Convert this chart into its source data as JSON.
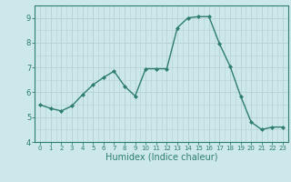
{
  "x": [
    0,
    1,
    2,
    3,
    4,
    5,
    6,
    7,
    8,
    9,
    10,
    11,
    12,
    13,
    14,
    15,
    16,
    17,
    18,
    19,
    20,
    21,
    22,
    23
  ],
  "y": [
    5.5,
    5.35,
    5.25,
    5.45,
    5.9,
    6.3,
    6.6,
    6.85,
    6.25,
    5.85,
    6.95,
    6.95,
    6.95,
    8.6,
    9.0,
    9.05,
    9.05,
    7.95,
    7.05,
    5.85,
    4.8,
    4.5,
    4.6,
    4.6
  ],
  "line_color": "#2e7d6e",
  "marker": "D",
  "marker_size": 2,
  "line_width": 1.0,
  "xlabel": "Humidex (Indice chaleur)",
  "xlabel_fontsize": 7,
  "xlim": [
    -0.5,
    23.5
  ],
  "ylim": [
    4,
    9.5
  ],
  "yticks": [
    4,
    5,
    6,
    7,
    8,
    9
  ],
  "xticks": [
    0,
    1,
    2,
    3,
    4,
    5,
    6,
    7,
    8,
    9,
    10,
    11,
    12,
    13,
    14,
    15,
    16,
    17,
    18,
    19,
    20,
    21,
    22,
    23
  ],
  "bg_color": "#cce8ea",
  "grid_color_major": "#b8d4d6",
  "grid_color_minor": "#b8d4d6",
  "tick_color": "#2e7d6e",
  "spine_color": "#2e7d6e",
  "tick_fontsize_x": 5,
  "tick_fontsize_y": 6
}
